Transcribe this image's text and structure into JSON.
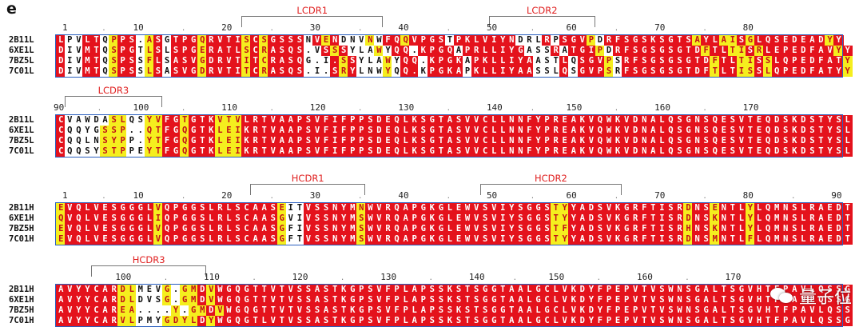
{
  "panel_letter": "e",
  "colors": {
    "identical": "#e4121c",
    "similar": "#f5ee1e",
    "box": "#2a5fbf",
    "cdr_label": "#e02020"
  },
  "blocks": [
    {
      "id": "light-1",
      "start": 1,
      "end": 77,
      "ticks": [
        {
          "num": 1,
          "col": 1
        },
        {
          "num": 10,
          "col": 9
        },
        {
          "num": 20,
          "col": 19
        },
        {
          "num": 30,
          "col": 29
        },
        {
          "num": 40,
          "col": 39
        },
        {
          "num": 50,
          "col": 49
        },
        {
          "num": 60,
          "col": 58
        },
        {
          "num": 70,
          "col": 68
        },
        {
          "num": 80,
          "col": 78
        }
      ],
      "cdrs": [
        {
          "label": "LCDR1",
          "from": 21,
          "to": 36
        },
        {
          "label": "LCDR2",
          "from": 49,
          "to": 60
        }
      ],
      "rows": [
        {
          "name": "2B11L",
          "seq": "LPVLTQPPS.ASGTPGQRVTISCSGSSSNVENDNVNWFQQVPGSTPKLVIYNDRLRPSGVPDRFSGSKSGTSAYLAISGLQSEDEADYY"
        },
        {
          "name": "6XE1L",
          "seq": "DIVMTQSPGTLSLSPGERATLSCRASQS.VSSSYLAWYQQ.KPGQAPRLLIYGASSRATGIPDRFSGSGSGTDFTLTISRLEPEDFAVYY"
        },
        {
          "name": "7BZ5L",
          "seq": "DIVMTQSPSSFLSASVGDRVTITCRASQG.I.SSYLAWYQQ.KPGKAPKLLIYAASTLQSGVPSRFSGSGSGTDFTLTISSLQPEDFATYY"
        },
        {
          "name": "7C01L",
          "seq": "DIVMTQSPSSLSASVGDRVTITCRASQS.I.SRYLNWYQQ.KPGKAPKLLIYAASSLQSGVPSRFSGSGSGTDFTLTISSLQPEDFATYY"
        }
      ],
      "shading": [
        "RWWRRWYRR.YRWRRRYRRRRYRYRRRRWRYRWWWYWRRYRRRRWRRRRRRRWWWRWRRRYWRRRRRRRRRRYRRYYRYRRRRRRRRYRR",
        "RWWRRWYRR.YRWRRRYRRRRYRYRRRR.WRYRWWWYWRR.RRRRWRRRRRRRWWWRWRRRYWRRRRRRRRRRYRRYYRYRRRRRRRRYRR",
        "RWWRRWYRR.YRWRRRYRRRRYRYRRRR.W.RYRWWWYWRR.RRRRWRRRRRRRWWWRWRRRYWRRRRRRRRRRYRRYYRYRRRRRRRRYRR",
        "RWWRRWYRR.YRWRRRYRRRRYRYRRRR.W.RYRWWWYWRR.RRRRWRRRRRRRWWWRWRRRYWRRRRRRRRRRYRRYYRYRRRRRRRRYRR"
      ]
    },
    {
      "id": "light-2",
      "start": 90,
      "end": 176,
      "ticks": [
        {
          "num": 90,
          "col": 0
        },
        {
          "num": 100,
          "col": 9
        },
        {
          "num": 110,
          "col": 19
        },
        {
          "num": 120,
          "col": 29
        },
        {
          "num": 130,
          "col": 39
        },
        {
          "num": 140,
          "col": 49
        },
        {
          "num": 150,
          "col": 58
        },
        {
          "num": 160,
          "col": 68
        },
        {
          "num": 170,
          "col": 78
        }
      ],
      "cdrs": [
        {
          "label": "LCDR3",
          "from": 1,
          "to": 11
        }
      ],
      "rows": [
        {
          "name": "2B11L",
          "seq": "CVAWDASLQSYVFGTGTKVTVLRTVAAPSVFIFPPSDEQLKSGTASVVCLLNNFYPREAKVQWKVDNALQSGNSQESVTEQDSKDSTYSL"
        },
        {
          "name": "6XE1L",
          "seq": "CQQYGSSP..QTFGQGTKLEIKRTVAAPSVFIFPPSDEQLKSGTASVVCLLNNFYPREAKVQWKVDNALQSGNSQESVTEQDSKDSTYSL"
        },
        {
          "name": "7BZ5L",
          "seq": "CQQLNSYPP.YTFGQGTKLEIKRTVAAPSVFIFPPSDEQLKSGTASVVCLLNNFYPREAKVQWKVDNALQSGNSQESVTEQDSKDSTYSL"
        },
        {
          "name": "7C01L",
          "seq": "CQQSYSTPPEYTFGQGTKLEIKRTVAAPSVFIFPPSDEQLKSGTASVVCLLNNFYPREAKVQWKVDNALQSGNSQESVTEQDSKDSTYSL"
        }
      ],
      "shading": [
        "RWWWWWYYWWYYRRYRRRYYYRRRRRRRRRRRRRRRRRRRRRRRRRRRRRRRRRRRRRRRRRRRRRRRRRRRRRRRRRRRRRRRRRRRR",
        "RWWWWYYYWWYYRRYRRRYYYRRRRRRRRRRRRRRRRRRRRRRRRRRRRRRRRRRRRRRRRRRRRRRRRRRRRRRRRRRRRRRRRRRRR",
        "RWWWWYYYWWYYRRYRRRYYYRRRRRRRRRRRRRRRRRRRRRRRRRRRRRRRRRRRRRRRRRRRRRRRRRRRRRRRRRRRRRRRRRRRR",
        "RWWWWYYYWWYYRRYRRRYYYRRRRRRRRRRRRRRRRRRRRRRRRRRRRRRRRRRRRRRRRRRRRRRRRRRRRRRRRRRRRRRRRRRRR"
      ]
    },
    {
      "id": "heavy-1",
      "start": 1,
      "end": 90,
      "ticks": [
        {
          "num": 1,
          "col": 1
        },
        {
          "num": 10,
          "col": 9
        },
        {
          "num": 20,
          "col": 19
        },
        {
          "num": 30,
          "col": 29
        },
        {
          "num": 40,
          "col": 39
        },
        {
          "num": 50,
          "col": 49
        },
        {
          "num": 60,
          "col": 58
        },
        {
          "num": 70,
          "col": 68
        },
        {
          "num": 80,
          "col": 78
        },
        {
          "num": 90,
          "col": 88
        }
      ],
      "cdrs": [
        {
          "label": "HCDR1",
          "from": 22,
          "to": 34
        },
        {
          "label": "HCDR2",
          "from": 48,
          "to": 63
        }
      ],
      "rows": [
        {
          "name": "2B11H",
          "seq": "EVQLVESGGGLVQPGGSLRLSCAASEITVSSNYMNWVRQAPGKGLEWVSVIYSGGSTYYADSVKGRFTISRDNSENTLYLQMNSLRAEDT"
        },
        {
          "name": "6XE1H",
          "seq": "QVQLVESGGGLIQPGGSLRLSCAASGVIVSSNYMSWVRQAPGKGLEWVSVIYSGGSTYYADSVKGRFTISRDNSKNTLYLQMNSLRAEDT"
        },
        {
          "name": "7BZ5H",
          "seq": "EVQLVESGGGLVQPGGSLRLSCAASGFIVSSNYMSWVRQAPGKGLEWVSVIYSGGSTFYADSVKGRFTISRHNSKNTLYLQMNSLRAEDT"
        },
        {
          "name": "7C01H",
          "seq": "EVQLVESGGGLVQPGGSLRLSCAASGFTVSSNYMSWVRQAPGKGLEWVSVIYSGGSTYYADSVKGRFTISRDNSMNTLFLQMNSLRAEDT"
        }
      ],
      "shading": [
        "YRRRRRRRRRRYRRRRRRRRRRRRRYWWRRRRRRYRRRRRRRRRRRRRRRRRRRRRYYRRRRRRRRRRRRRYRRYRRRYRRRRRRRRRRR",
        "YRRRRRRRRRRYRRRRRRRRRRRRRYWWRRRRRRYRRRRRRRRRRRRRRRRRRRRRYYRRRRRRRRRRRRRYRRYRRRYRRRRRRRRRRR",
        "YRRRRRRRRRRYRRRRRRRRRRRRRYWWRRRRRRYRRRRRRRRRRRRRRRRRRRRRYYRRRRRRRRRRRRRYRRYRRRYRRRRRRRRRRR",
        "YRRRRRRRRRRYRRRRRRRRRRRRRYWWRRRRRRYRRRRRRRRRRRRRRRRRRRRRYYRRRRRRRRRRRRRYRRYRRRYRRRRRRRRRRR"
      ]
    },
    {
      "id": "heavy-2",
      "start": 91,
      "end": 180,
      "ticks": [
        {
          "num": 100,
          "col": 7
        },
        {
          "num": 110,
          "col": 17
        },
        {
          "num": 120,
          "col": 27
        },
        {
          "num": 130,
          "col": 37
        },
        {
          "num": 140,
          "col": 47
        },
        {
          "num": 150,
          "col": 56
        },
        {
          "num": 160,
          "col": 66
        },
        {
          "num": 170,
          "col": 76
        }
      ],
      "cdrs": [
        {
          "label": "HCDR3",
          "from": 4,
          "to": 16
        }
      ],
      "rows": [
        {
          "name": "2B11H",
          "seq": "AVYYCARDLMEVG.GMDVWGQGTTVTVSSASTKGPSVFPLAPSSKSTSGGTAALGCLVKDYFPEPVTVSWNSGALTSGVHTFPAVLQSSG"
        },
        {
          "name": "6XE1H",
          "seq": "AVYYCARDLDVSG.GMDVWGQGTTVTVSSASTKGPSVFPLAPSSKSTSGGTAALGCLVKDYFPEPVTVSWNSGALTSGVHTFPAVLQSSG"
        },
        {
          "name": "7BZ5H",
          "seq": "AVYYCAREA....Y.GMDVWGQGTTVTVSSASTKGPSVFPLAPSSKSTSGGTAALGCLVKDYFPEPVTVSWNSGALTSGVHTFPAVLQSSG"
        },
        {
          "name": "7C01H",
          "seq": "AVYYCARVLPMYGDYLDYWGQGTLVTVSSASTKGPSVFPLAPSSKSTSGGTAALGCLVKDYFPEPVTVSWNSGALTSGVHTFPAVLQSSG"
        }
      ],
      "shading": [
        "RRRRRRRYYWWWY.YYRYRRRRRRRRRRRRRRRRRRRRRRRRRRRRRRRRRRRRRRRRRRRRRRRRRRRRRRRRRRRRRRRRRRRRRRR",
        "RRRRRRRYYWWWY.YYRYRRRRRRRRRRRRRRRRRRRRRRRRRRRRRRRRRRRRRRRRRRRRRRRRRRRRRRRRRRRRRRRRRRRRRRR",
        "RRRRRRRYY....Y.YYRYRRRRRRRRRRRRRRRRRRRRRRRRRRRRRRRRRRRRRRRRRRRRRRRRRRRRRRRRRRRRRRRRRRRRRRR",
        "RRRRRRRYYWWWYYYYRYRRRRRRRRRRRRRRRRRRRRRRRRRRRRRRRRRRRRRRRRRRRRRRRRRRRRRRRRRRRRRRRRRRRRRRR"
      ]
    }
  ],
  "watermark": {
    "text": "量子位",
    "icon": "wechat-icon"
  }
}
